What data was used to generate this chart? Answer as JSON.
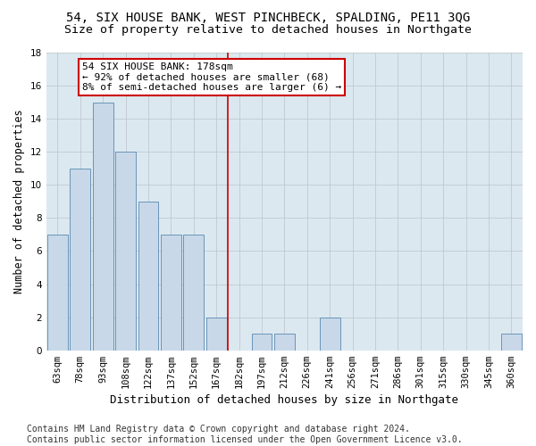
{
  "title": "54, SIX HOUSE BANK, WEST PINCHBECK, SPALDING, PE11 3QG",
  "subtitle": "Size of property relative to detached houses in Northgate",
  "xlabel": "Distribution of detached houses by size in Northgate",
  "ylabel": "Number of detached properties",
  "categories": [
    "63sqm",
    "78sqm",
    "93sqm",
    "108sqm",
    "122sqm",
    "137sqm",
    "152sqm",
    "167sqm",
    "182sqm",
    "197sqm",
    "212sqm",
    "226sqm",
    "241sqm",
    "256sqm",
    "271sqm",
    "286sqm",
    "301sqm",
    "315sqm",
    "330sqm",
    "345sqm",
    "360sqm"
  ],
  "values": [
    7,
    11,
    15,
    12,
    9,
    7,
    7,
    2,
    0,
    1,
    1,
    0,
    2,
    0,
    0,
    0,
    0,
    0,
    0,
    0,
    1
  ],
  "bar_color": "#c8d8e8",
  "bar_edge_color": "#5a8ab0",
  "annotation_text_line1": "54 SIX HOUSE BANK: 178sqm",
  "annotation_text_line2": "← 92% of detached houses are smaller (68)",
  "annotation_text_line3": "8% of semi-detached houses are larger (6) →",
  "annotation_box_color": "#ffffff",
  "annotation_box_edge_color": "#cc0000",
  "vline_color": "#cc0000",
  "vline_x_index": 8,
  "ylim": [
    0,
    18
  ],
  "yticks": [
    0,
    2,
    4,
    6,
    8,
    10,
    12,
    14,
    16,
    18
  ],
  "grid_color": "#c0c8d0",
  "bg_color": "#dce8f0",
  "footer_line1": "Contains HM Land Registry data © Crown copyright and database right 2024.",
  "footer_line2": "Contains public sector information licensed under the Open Government Licence v3.0.",
  "title_fontsize": 10,
  "subtitle_fontsize": 9.5,
  "xlabel_fontsize": 9,
  "ylabel_fontsize": 8.5,
  "tick_fontsize": 7.5,
  "annotation_fontsize": 8,
  "footer_fontsize": 7
}
